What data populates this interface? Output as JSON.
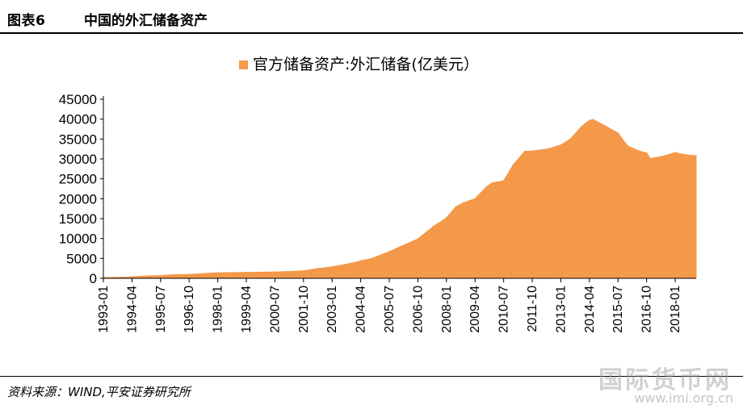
{
  "header": {
    "figure_no": "图表6",
    "title": "中国的外汇储备资产"
  },
  "footer": {
    "source": "资料来源：WIND,平安证券研究所"
  },
  "watermark": {
    "text": "国际货币网",
    "url": "www.imi.org.cn"
  },
  "colors": {
    "series": "#F4984A",
    "axis": "#000000",
    "rule": "#000000"
  },
  "chart_data": {
    "type": "area",
    "title": "",
    "xlabel": "",
    "ylabel": "",
    "ylim": [
      0,
      45000
    ],
    "yticks": [
      0,
      5000,
      10000,
      15000,
      20000,
      25000,
      30000,
      35000,
      40000,
      45000
    ],
    "grid": false,
    "legend_position": "top-center",
    "x_ticks": [
      "1993-01",
      "1994-04",
      "1995-07",
      "1996-10",
      "1998-01",
      "1999-04",
      "2000-07",
      "2001-10",
      "2003-01",
      "2004-04",
      "2005-07",
      "2006-10",
      "2008-01",
      "2009-04",
      "2010-07",
      "2011-10",
      "2013-01",
      "2014-04",
      "2015-07",
      "2016-10",
      "2018-01"
    ],
    "series": [
      {
        "name": "官方储备资产:外汇储备(亿美元）",
        "x": [
          "1993-01",
          "1994-01",
          "1994-04",
          "1995-01",
          "1995-07",
          "1996-01",
          "1996-10",
          "1997-06",
          "1998-01",
          "1999-04",
          "2000-07",
          "2001-01",
          "2001-10",
          "2002-06",
          "2003-01",
          "2003-06",
          "2004-01",
          "2004-04",
          "2004-10",
          "2005-07",
          "2006-01",
          "2006-10",
          "2007-06",
          "2008-01",
          "2008-06",
          "2008-10",
          "2009-01",
          "2009-04",
          "2009-10",
          "2010-01",
          "2010-07",
          "2010-12",
          "2011-06",
          "2011-10",
          "2012-06",
          "2013-01",
          "2013-06",
          "2013-12",
          "2014-04",
          "2014-06",
          "2014-12",
          "2015-07",
          "2015-12",
          "2016-06",
          "2016-10",
          "2016-12",
          "2017-06",
          "2018-01",
          "2018-06",
          "2018-12"
        ],
        "values": [
          200,
          300,
          400,
          600,
          700,
          900,
          1000,
          1200,
          1400,
          1500,
          1600,
          1700,
          1900,
          2500,
          2900,
          3300,
          4000,
          4400,
          5000,
          6700,
          8000,
          9900,
          13000,
          15200,
          18000,
          19000,
          19500,
          20000,
          23000,
          24000,
          24500,
          28500,
          31900,
          32000,
          32500,
          33500,
          35000,
          38200,
          39700,
          39900,
          38400,
          36500,
          33300,
          32000,
          31500,
          30100,
          30600,
          31600,
          31100,
          30800
        ]
      }
    ]
  }
}
